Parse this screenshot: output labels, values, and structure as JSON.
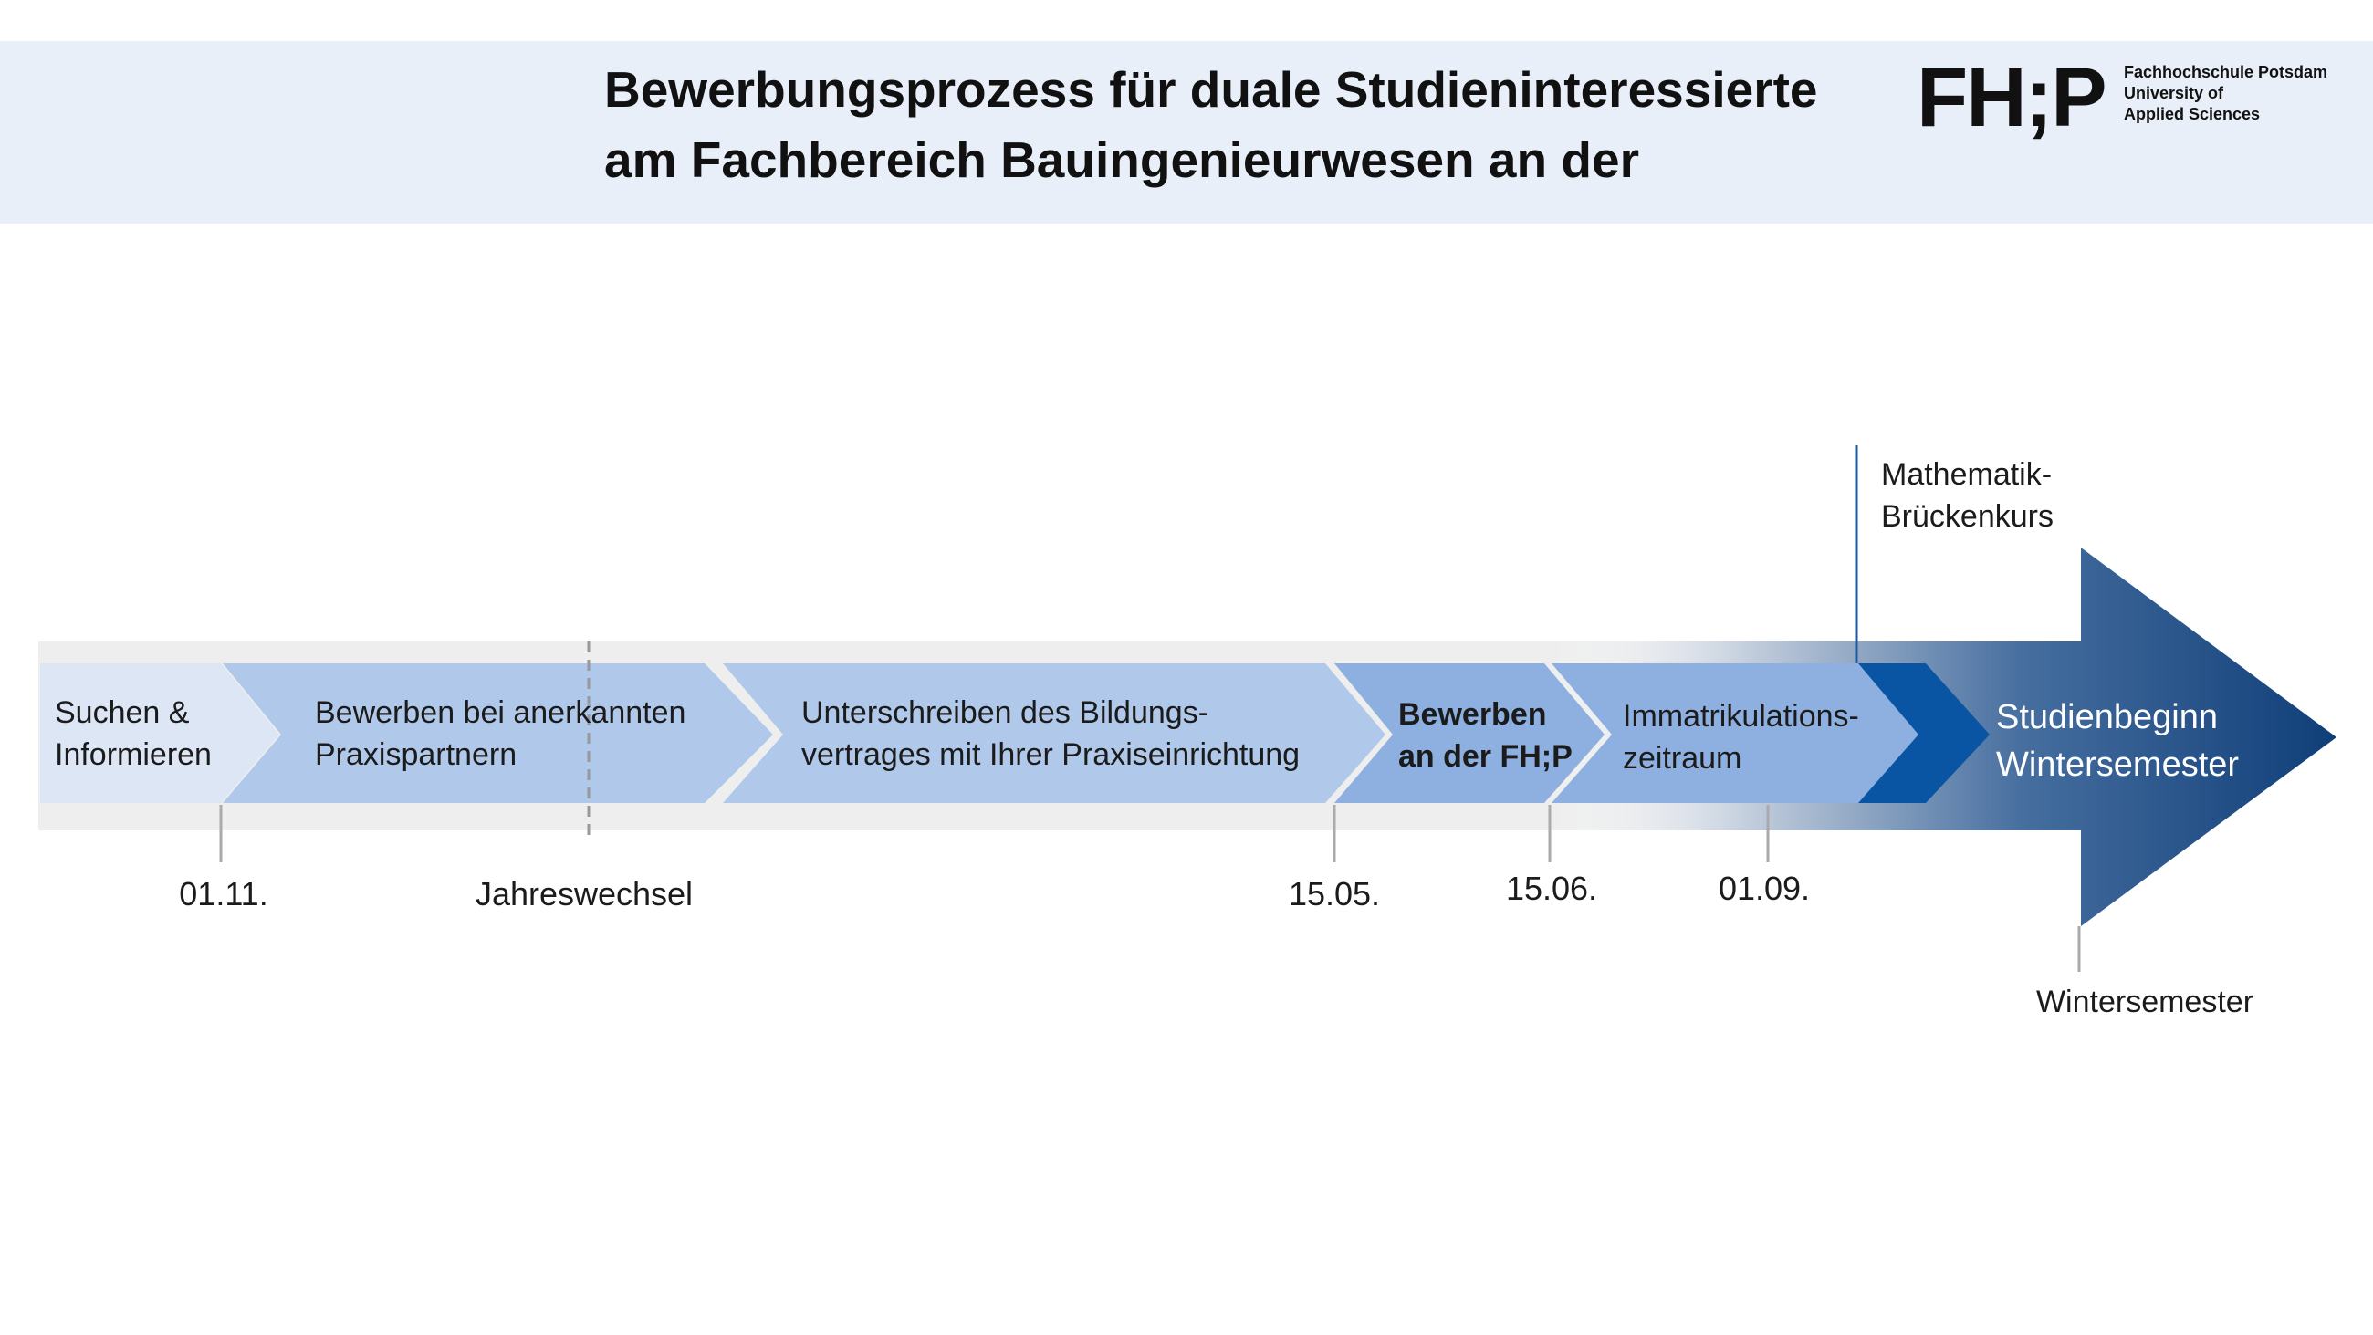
{
  "header": {
    "title_lines": [
      "Bewerbungsprozess für duale Studieninteressierte",
      "am Fachbereich Bauingenieurwesen an der"
    ],
    "logo": {
      "mark": "FH;P",
      "lines": [
        "Fachhochschule Potsdam",
        "University of",
        "Applied Sciences"
      ]
    }
  },
  "steps": [
    {
      "id": "suchen",
      "lines": [
        "Suchen &",
        "Informieren"
      ]
    },
    {
      "id": "praxispartner",
      "lines": [
        "Bewerben bei anerkannten",
        "Praxispartnern"
      ]
    },
    {
      "id": "bildungsvertrag",
      "lines": [
        "Unterschreiben des Bildungs-",
        "vertrages mit Ihrer Praxiseinrichtung"
      ]
    },
    {
      "id": "bewerben-fhp",
      "lines": [
        "Bewerben",
        "an der FH;P"
      ],
      "bold": true
    },
    {
      "id": "immatrikulation",
      "lines": [
        "Immatrikulations-",
        "zeitraum"
      ]
    }
  ],
  "final_arrow": {
    "lines": [
      "Studienbeginn",
      "Wintersemester"
    ]
  },
  "milestones": [
    {
      "id": "m-0111",
      "label": "01.11."
    },
    {
      "id": "m-jahreswechsel",
      "label": "Jahreswechsel"
    },
    {
      "id": "m-1505",
      "label": "15.05."
    },
    {
      "id": "m-1506",
      "label": "15.06."
    },
    {
      "id": "m-0109",
      "label": "01.09."
    },
    {
      "id": "m-wintersemester",
      "label": "Wintersemester"
    }
  ],
  "callout": {
    "lines": [
      "Mathematik-",
      "Brückenkurs"
    ]
  },
  "colors": {
    "header_bg": "#e9eff9",
    "step_1": "#dce6f5",
    "step_2_3": "#b0c8ea",
    "step_4_5": "#8db0e1",
    "step_6": "#0a55a3",
    "final": "#1c4b86"
  }
}
